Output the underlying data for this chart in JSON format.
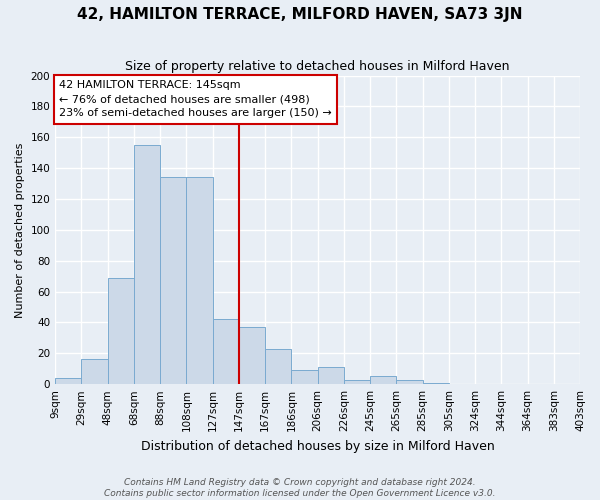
{
  "title": "42, HAMILTON TERRACE, MILFORD HAVEN, SA73 3JN",
  "subtitle": "Size of property relative to detached houses in Milford Haven",
  "xlabel": "Distribution of detached houses by size in Milford Haven",
  "ylabel": "Number of detached properties",
  "bar_labels": [
    "9sqm",
    "29sqm",
    "48sqm",
    "68sqm",
    "88sqm",
    "108sqm",
    "127sqm",
    "147sqm",
    "167sqm",
    "186sqm",
    "206sqm",
    "226sqm",
    "245sqm",
    "265sqm",
    "285sqm",
    "305sqm",
    "324sqm",
    "344sqm",
    "364sqm",
    "383sqm",
    "403sqm"
  ],
  "bar_values": [
    4,
    16,
    69,
    155,
    134,
    134,
    42,
    37,
    23,
    9,
    11,
    3,
    5,
    3,
    1,
    0,
    0,
    0,
    0,
    0
  ],
  "bar_color": "#ccd9e8",
  "bar_edge_color": "#7aaad0",
  "vline_color": "#cc0000",
  "vline_position": 6,
  "ylim": [
    0,
    200
  ],
  "yticks": [
    0,
    20,
    40,
    60,
    80,
    100,
    120,
    140,
    160,
    180,
    200
  ],
  "annotation_title": "42 HAMILTON TERRACE: 145sqm",
  "annotation_line1": "← 76% of detached houses are smaller (498)",
  "annotation_line2": "23% of semi-detached houses are larger (150) →",
  "annotation_box_facecolor": "#ffffff",
  "annotation_box_edgecolor": "#cc0000",
  "footer_line1": "Contains HM Land Registry data © Crown copyright and database right 2024.",
  "footer_line2": "Contains public sector information licensed under the Open Government Licence v3.0.",
  "background_color": "#e8eef5",
  "plot_bg_color": "#e8eef5",
  "grid_color": "#ffffff",
  "title_fontsize": 11,
  "subtitle_fontsize": 9,
  "xlabel_fontsize": 9,
  "ylabel_fontsize": 8,
  "tick_fontsize": 7.5,
  "annotation_fontsize": 8,
  "footer_fontsize": 6.5
}
